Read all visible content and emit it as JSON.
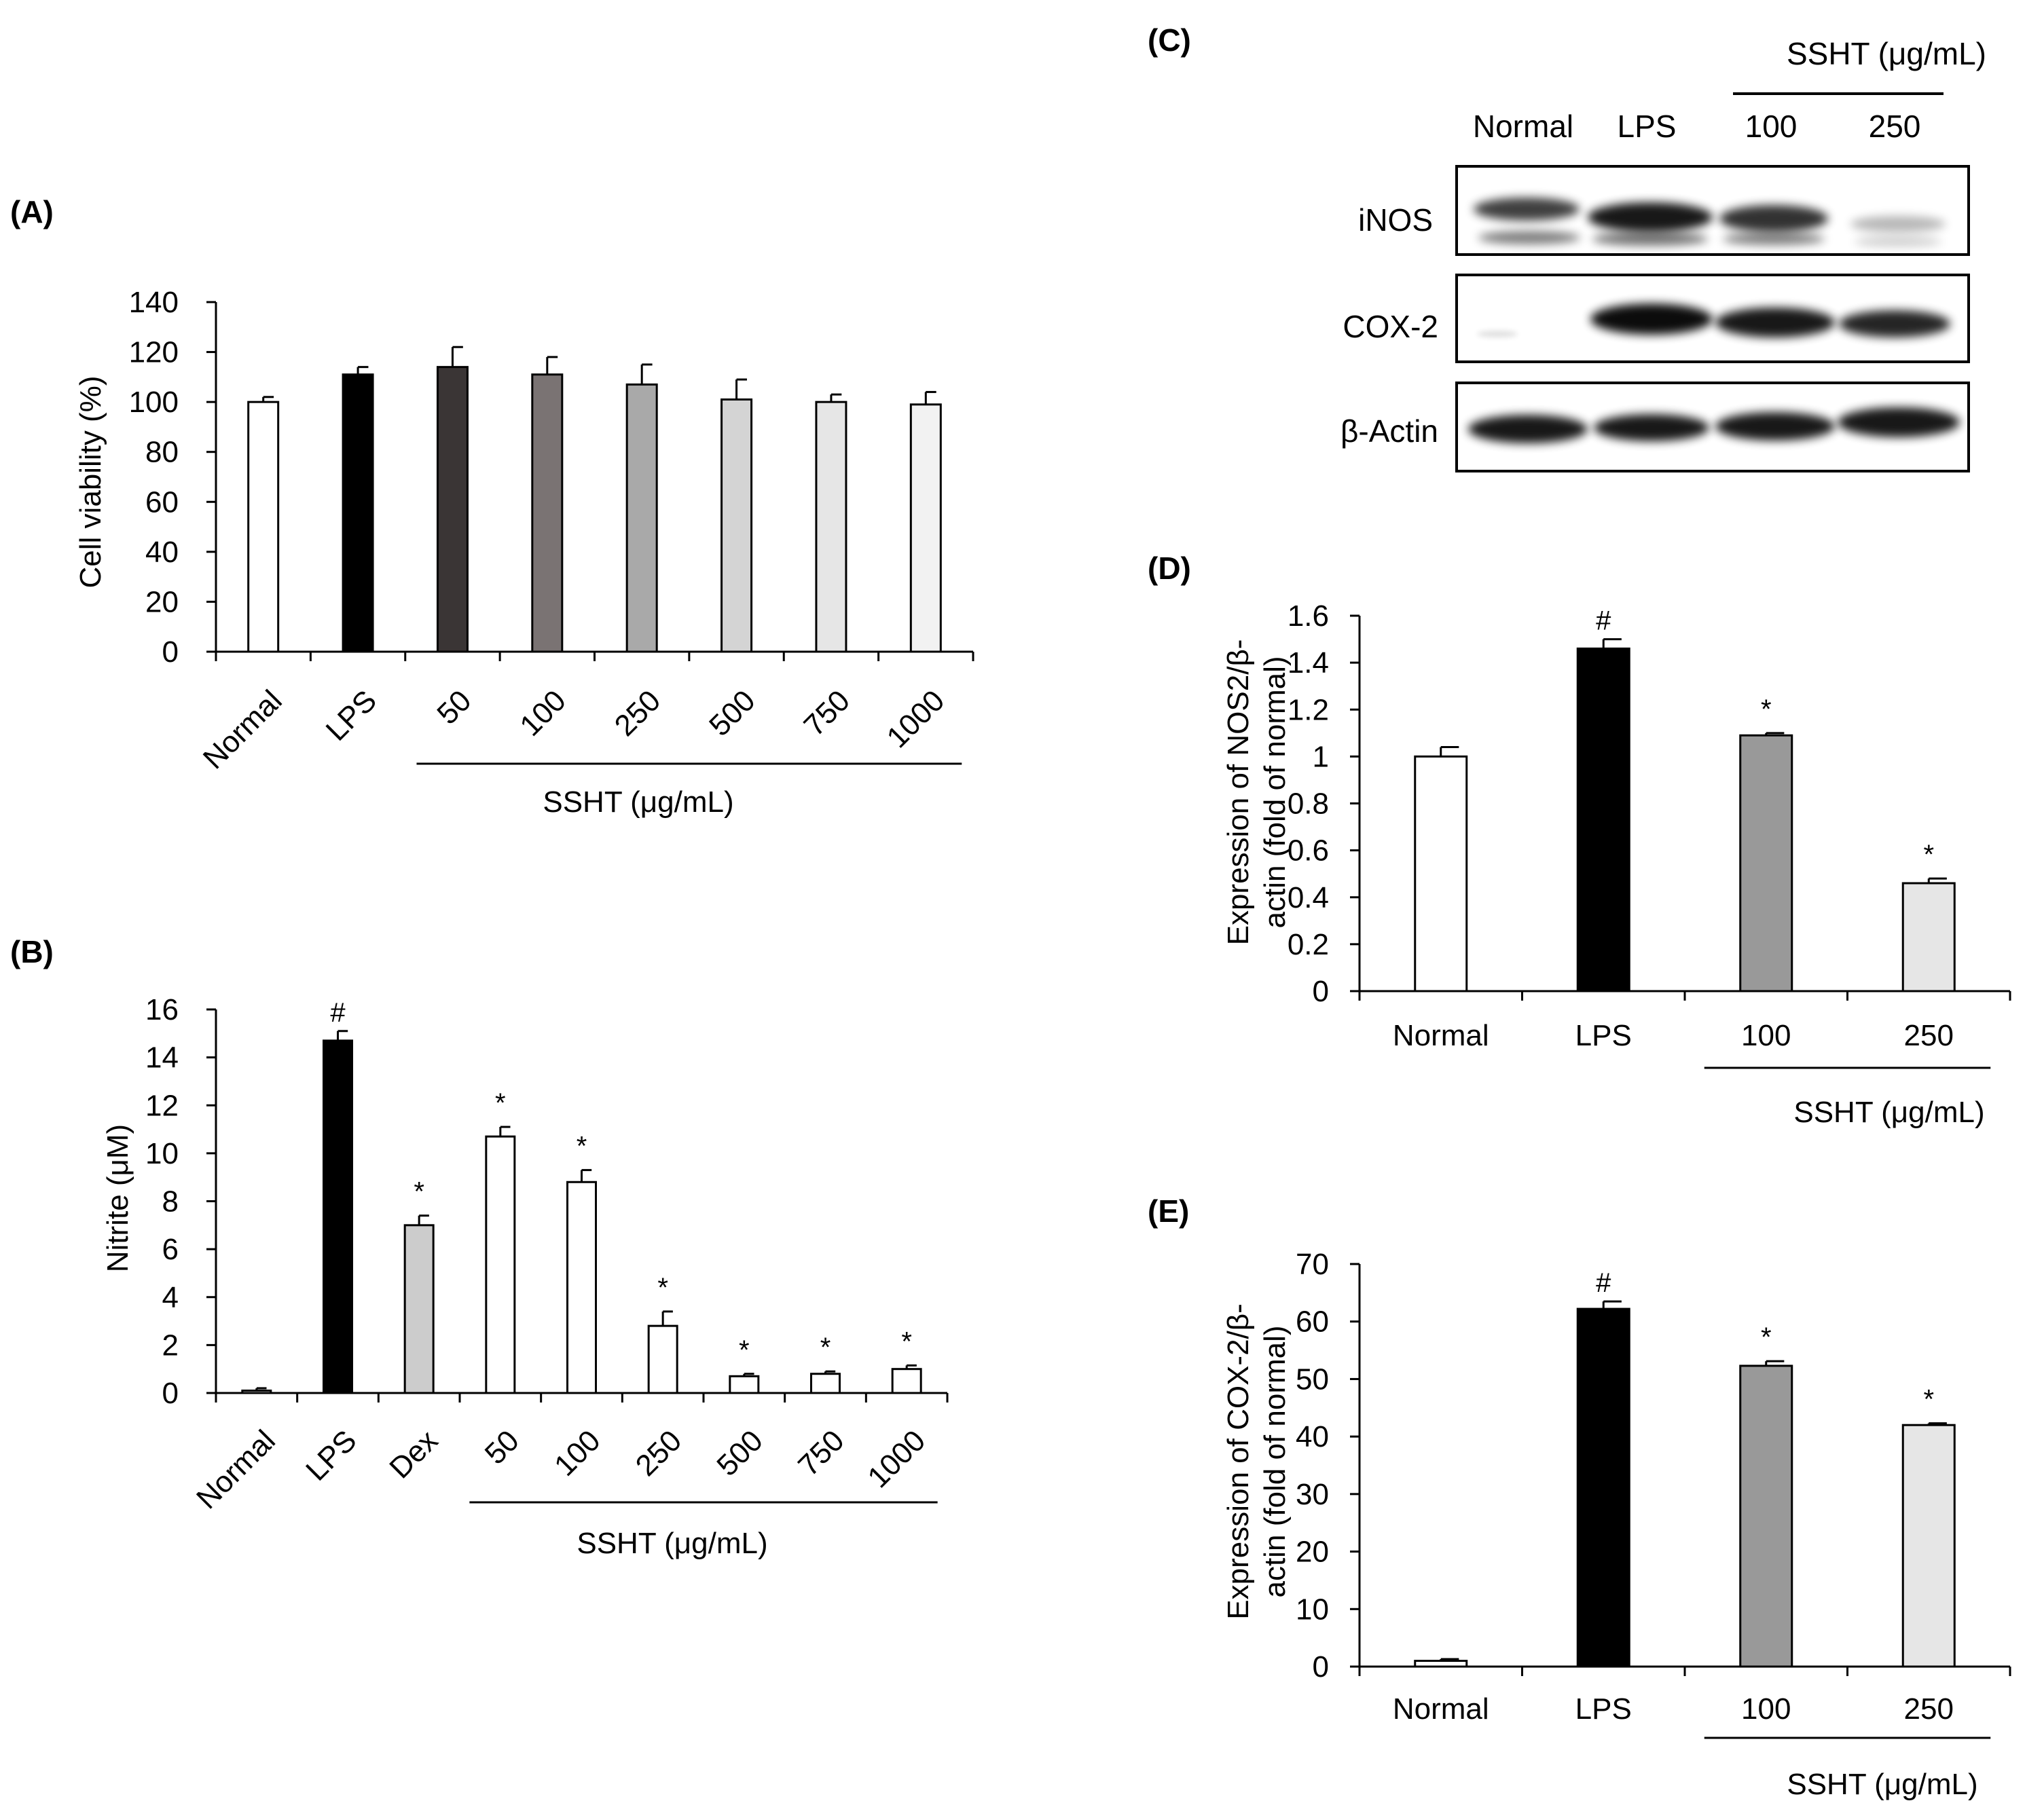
{
  "chart_data": [
    {
      "id": "A",
      "panel_label": "(A)",
      "type": "bar",
      "categories": [
        "Normal",
        "LPS",
        "50",
        "100",
        "250",
        "500",
        "750",
        "1000"
      ],
      "values": [
        100,
        111,
        114,
        111,
        107,
        101,
        100,
        99
      ],
      "errors": [
        2,
        3,
        8,
        7,
        8,
        8,
        3,
        5
      ],
      "colors": [
        "#ffffff",
        "#000000",
        "#3a3535",
        "#7a7373",
        "#a9a9a9",
        "#d4d4d4",
        "#e6e6e6",
        "#f2f2f2"
      ],
      "ylabel": "Cell viability (%)",
      "ylim": [
        0,
        140
      ],
      "yticks": [
        0,
        20,
        40,
        60,
        80,
        100,
        120,
        140
      ],
      "group_label": "SSHT (μg/mL)",
      "group_range": [
        2,
        7
      ],
      "markers": []
    },
    {
      "id": "B",
      "panel_label": "(B)",
      "type": "bar",
      "categories": [
        "Normal",
        "LPS",
        "Dex",
        "50",
        "100",
        "250",
        "500",
        "750",
        "1000"
      ],
      "values": [
        0.1,
        14.7,
        7.0,
        10.7,
        8.8,
        2.8,
        0.7,
        0.8,
        1.0
      ],
      "errors": [
        0.1,
        0.4,
        0.4,
        0.4,
        0.5,
        0.6,
        0.1,
        0.1,
        0.15
      ],
      "colors": [
        "#ffffff",
        "#000000",
        "#cccccc",
        "#ffffff",
        "#ffffff",
        "#ffffff",
        "#ffffff",
        "#ffffff",
        "#ffffff"
      ],
      "ylabel": "Nitrite (μM)",
      "ylim": [
        0,
        16
      ],
      "yticks": [
        0,
        2,
        4,
        6,
        8,
        10,
        12,
        14,
        16
      ],
      "group_label": "SSHT (μg/mL)",
      "group_range": [
        3,
        8
      ],
      "markers": [
        "",
        "#",
        "*",
        "*",
        "*",
        "*",
        "*",
        "*",
        "*"
      ]
    },
    {
      "id": "D",
      "panel_label": "(D)",
      "type": "bar",
      "categories": [
        "Normal",
        "LPS",
        "100",
        "250"
      ],
      "values": [
        1.0,
        1.46,
        1.09,
        0.46
      ],
      "errors": [
        0.04,
        0.04,
        0.01,
        0.02
      ],
      "colors": [
        "#ffffff",
        "#000000",
        "#999999",
        "#e6e6e6"
      ],
      "ylabel_lines": [
        "Expression of NOS2/β-",
        "actin (fold of normal)"
      ],
      "ylim": [
        0,
        1.6
      ],
      "yticks": [
        0,
        0.2,
        0.4,
        0.6,
        0.8,
        1,
        1.2,
        1.4,
        1.6
      ],
      "group_label": "SSHT (μg/mL)",
      "group_range": [
        2,
        3
      ],
      "markers": [
        "",
        "#",
        "*",
        "*"
      ]
    },
    {
      "id": "E",
      "panel_label": "(E)",
      "type": "bar",
      "categories": [
        "Normal",
        "LPS",
        "100",
        "250"
      ],
      "values": [
        1.0,
        62.2,
        52.3,
        42.0
      ],
      "errors": [
        0.3,
        1.3,
        0.8,
        0.3
      ],
      "colors": [
        "#ffffff",
        "#000000",
        "#999999",
        "#e6e6e6"
      ],
      "ylabel_lines": [
        "Expression of COX-2/β-",
        "actin (fold of normal)"
      ],
      "ylim": [
        0,
        70
      ],
      "yticks": [
        0,
        10,
        20,
        30,
        40,
        50,
        60,
        70
      ],
      "group_label": "SSHT (μg/mL)",
      "group_range": [
        2,
        3
      ],
      "markers": [
        "",
        "#",
        "*",
        "*"
      ]
    }
  ],
  "western_blot": {
    "panel_label": "(C)",
    "group_label": "SSHT (μg/mL)",
    "lanes": [
      "Normal",
      "LPS",
      "100",
      "250"
    ],
    "rows": [
      {
        "label": "iNOS"
      },
      {
        "label": "COX-2"
      },
      {
        "label": "β-Actin"
      }
    ]
  }
}
